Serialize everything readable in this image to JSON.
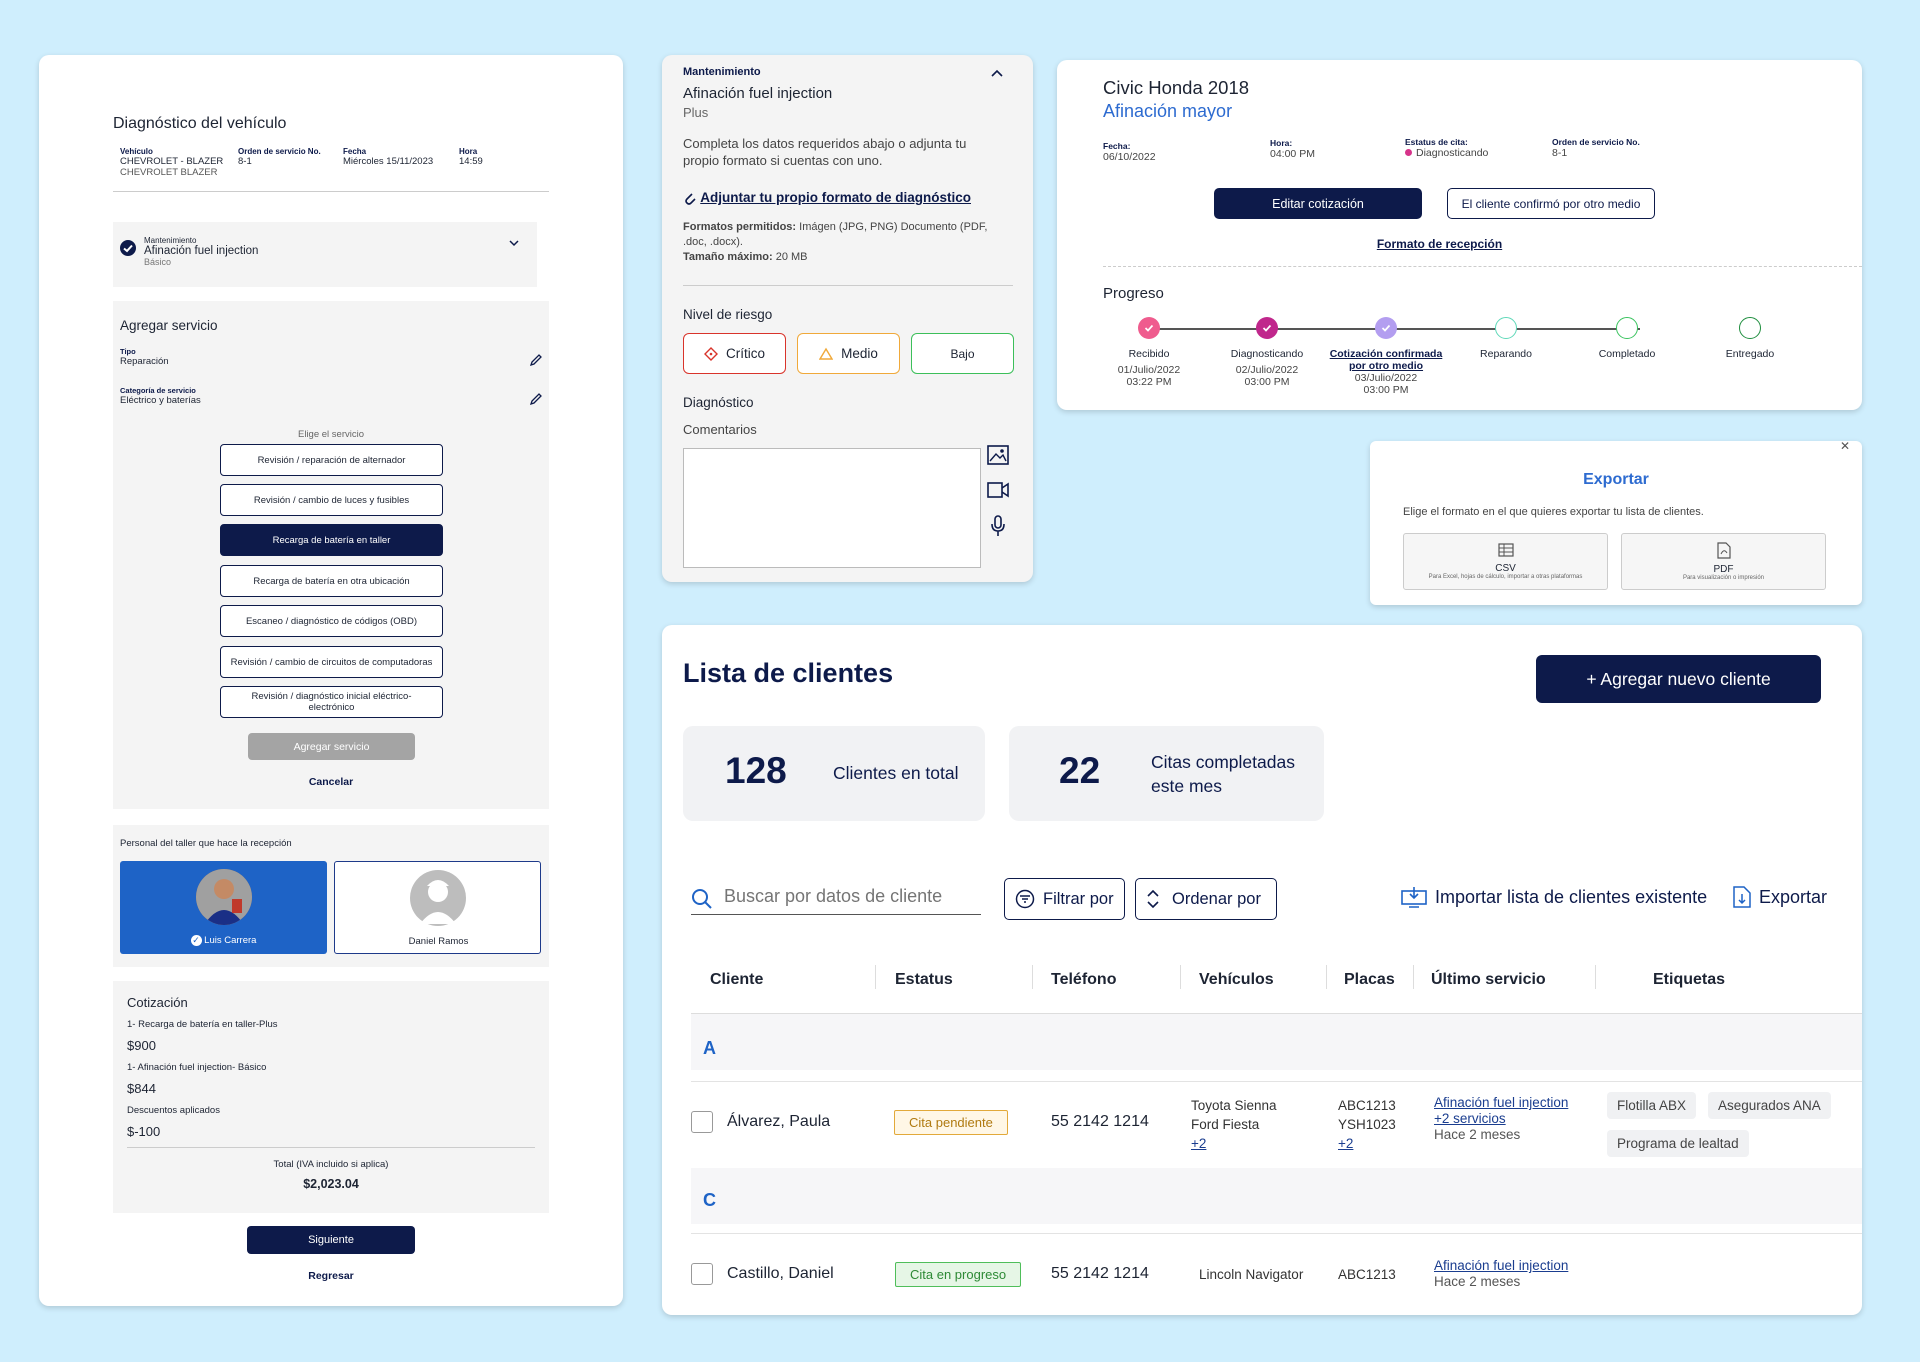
{
  "diag": {
    "title": "Diagnóstico del vehículo",
    "vehicle_h": "Vehículo",
    "vehicle_v": "CHEVROLET - BLAZER",
    "vehicle_s": "CHEVROLET BLAZER",
    "order_h": "Orden de servicio No.",
    "order_v": "8-1",
    "date_h": "Fecha",
    "date_v": "Miércoles 15/11/2023",
    "time_h": "Hora",
    "time_v": "14:59",
    "maint_h": "Mantenimiento",
    "maint_v": "Afinación fuel injection",
    "maint_s": "Básico",
    "add_title": "Agregar servicio",
    "tipo_h": "Tipo",
    "tipo_v": "Reparación",
    "cat_h": "Categoría de servicio",
    "cat_v": "Eléctrico y baterías",
    "choose": "Elige el servicio",
    "services": [
      "Revisión / reparación de alternador",
      "Revisión / cambio de luces y fusibles",
      "Recarga de batería en taller",
      "Recarga de batería en otra ubicación",
      "Escaneo / diagnóstico de códigos (OBD)",
      "Revisión / cambio de circuitos de computadoras",
      "Revisión / diagnóstico inicial eléctrico-electrónico"
    ],
    "add_btn": "Agregar servicio",
    "cancel": "Cancelar",
    "staff_title": "Personal del taller que hace la recepción",
    "staff1": "Luis Carrera",
    "staff2": "Daniel Ramos",
    "quote_title": "Cotización",
    "q1": "1- Recarga de batería en taller-Plus",
    "q1v": "$900",
    "q2": "1- Afinación fuel injection- Básico",
    "q2v": "$844",
    "disc": "Descuentos aplicados",
    "discv": "$-100",
    "total_h": "Total (IVA incluido si aplica)",
    "total_v": "$2,023.04",
    "next": "Siguiente",
    "back": "Regresar"
  },
  "maint": {
    "cat": "Mantenimiento",
    "name": "Afinación fuel injection",
    "tier": "Plus",
    "desc": "Completa los datos requeridos abajo o adjunta tu propio formato si cuentas con uno.",
    "attach": "Adjuntar tu propio formato de diagnóstico",
    "formats_b": "Formatos permitidos:",
    "formats_v": "Imágen (JPG, PNG) Documento (PDF, .doc, .docx).",
    "size_b": "Tamaño máximo:",
    "size_v": "20 MB",
    "risk_title": "Nivel de riesgo",
    "risk_critical": "Crítico",
    "risk_medium": "Medio",
    "risk_low": "Bajo",
    "diag_title": "Diagnóstico",
    "comments": "Comentarios"
  },
  "civic": {
    "car": "Civic Honda 2018",
    "service": "Afinación mayor",
    "date_h": "Fecha:",
    "date_v": "06/10/2022",
    "time_h": "Hora:",
    "time_v": "04:00 PM",
    "status_h": "Estatus de cita:",
    "status_v": "Diagnosticando",
    "order_h": "Orden de servicio No.",
    "order_v": "8-1",
    "edit_btn": "Editar cotización",
    "confirm_btn": "El cliente confirmó por otro medio",
    "reception": "Formato de recepción",
    "progress": "Progreso",
    "steps": [
      {
        "label": "Recibido",
        "date": "01/Julio/2022",
        "time": "03:22 PM"
      },
      {
        "label": "Diagnosticando",
        "date": "02/Julio/2022",
        "time": "03:00 PM"
      },
      {
        "label": "Cotización confirmada por otro medio",
        "date": "03/Julio/2022",
        "time": "03:00 PM"
      },
      {
        "label": "Reparando",
        "date": "",
        "time": ""
      },
      {
        "label": "Completado",
        "date": "",
        "time": ""
      },
      {
        "label": "Entregado",
        "date": "",
        "time": ""
      }
    ]
  },
  "export": {
    "title": "Exportar",
    "desc": "Elige el formato en el que quieres exportar tu lista de clientes.",
    "csv": "CSV",
    "csv_s": "Para Excel, hojas de cálculo, importar a otras plataformas",
    "pdf": "PDF",
    "pdf_s": "Para visualización o impresión"
  },
  "clients": {
    "title": "Lista de clientes",
    "add_btn": "+ Agregar nuevo cliente",
    "total_n": "128",
    "total_l": "Clientes en total",
    "done_n": "22",
    "done_l1": "Citas completadas",
    "done_l2": "este mes",
    "search_ph": "Buscar por datos de cliente",
    "filter": "Filtrar por",
    "sort": "Ordenar por",
    "import": "Importar lista de clientes existente",
    "export": "Exportar",
    "columns": [
      "Cliente",
      "Estatus",
      "Teléfono",
      "Vehículos",
      "Placas",
      "Último servicio",
      "Etiquetas"
    ],
    "group_a": "A",
    "group_c": "C",
    "rows": [
      {
        "name": "Álvarez, Paula",
        "status": "Cita pendiente",
        "phone": "55 2142 1214",
        "veh1": "Toyota Sienna",
        "veh2": "Ford Fiesta",
        "veh_more": "+2",
        "plate1": "ABC1213",
        "plate2": "YSH1023",
        "plate_more": "+2",
        "svc": "Afinación fuel injection",
        "svc_more": "+2 servicios",
        "when": "Hace 2 meses",
        "tag1": "Flotilla ABX",
        "tag2": "Asegurados ANA",
        "tag3": "Programa de lealtad"
      },
      {
        "name": "Castillo, Daniel",
        "status": "Cita en progreso",
        "phone": "55 2142 1214",
        "veh1": "Lincoln Navigator",
        "plate1": "ABC1213",
        "svc": "Afinación fuel injection",
        "when": "Hace 2 meses"
      }
    ]
  }
}
